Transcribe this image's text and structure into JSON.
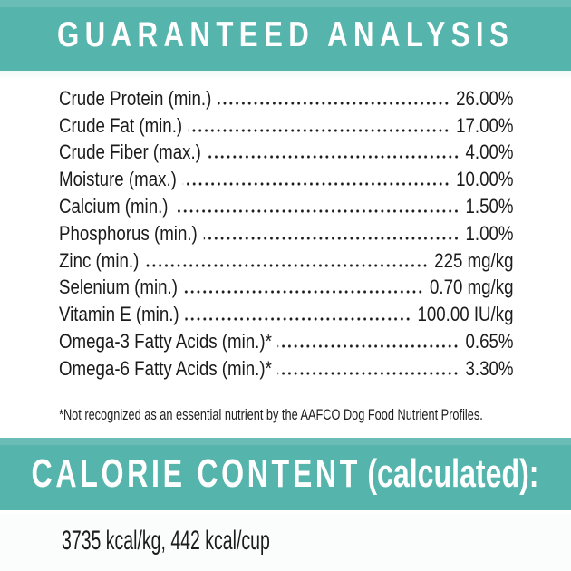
{
  "colors": {
    "accent_teal": "#55b4ac",
    "band_text": "#ffffff",
    "text_dark": "#1b1b1b"
  },
  "guaranteed_analysis": {
    "title": "GUARANTEED ANALYSIS",
    "rows": [
      {
        "label": "Crude Protein (min.)",
        "value": "26.00%"
      },
      {
        "label": "Crude Fat (min.)",
        "value": "17.00%"
      },
      {
        "label": "Crude Fiber (max.)",
        "value": "4.00%"
      },
      {
        "label": "Moisture (max.)",
        "value": "10.00%"
      },
      {
        "label": "Calcium (min.)",
        "value": "1.50%"
      },
      {
        "label": "Phosphorus (min.)",
        "value": "1.00%"
      },
      {
        "label": "Zinc (min.)",
        "value": "225 mg/kg"
      },
      {
        "label": "Selenium (min.)",
        "value": "0.70 mg/kg"
      },
      {
        "label": "Vitamin E (min.)",
        "value": "100.00 IU/kg"
      },
      {
        "label": "Omega-3 Fatty Acids (min.)*",
        "value": "0.65%"
      },
      {
        "label": "Omega-6 Fatty Acids (min.)*",
        "value": "3.30%"
      }
    ],
    "footnote": "*Not recognized as an essential nutrient by the AAFCO Dog Food Nutrient Profiles."
  },
  "calorie_content": {
    "title": "CALORIE CONTENT",
    "qualifier": "(calculated):",
    "value": "3735 kcal/kg, 442 kcal/cup"
  }
}
